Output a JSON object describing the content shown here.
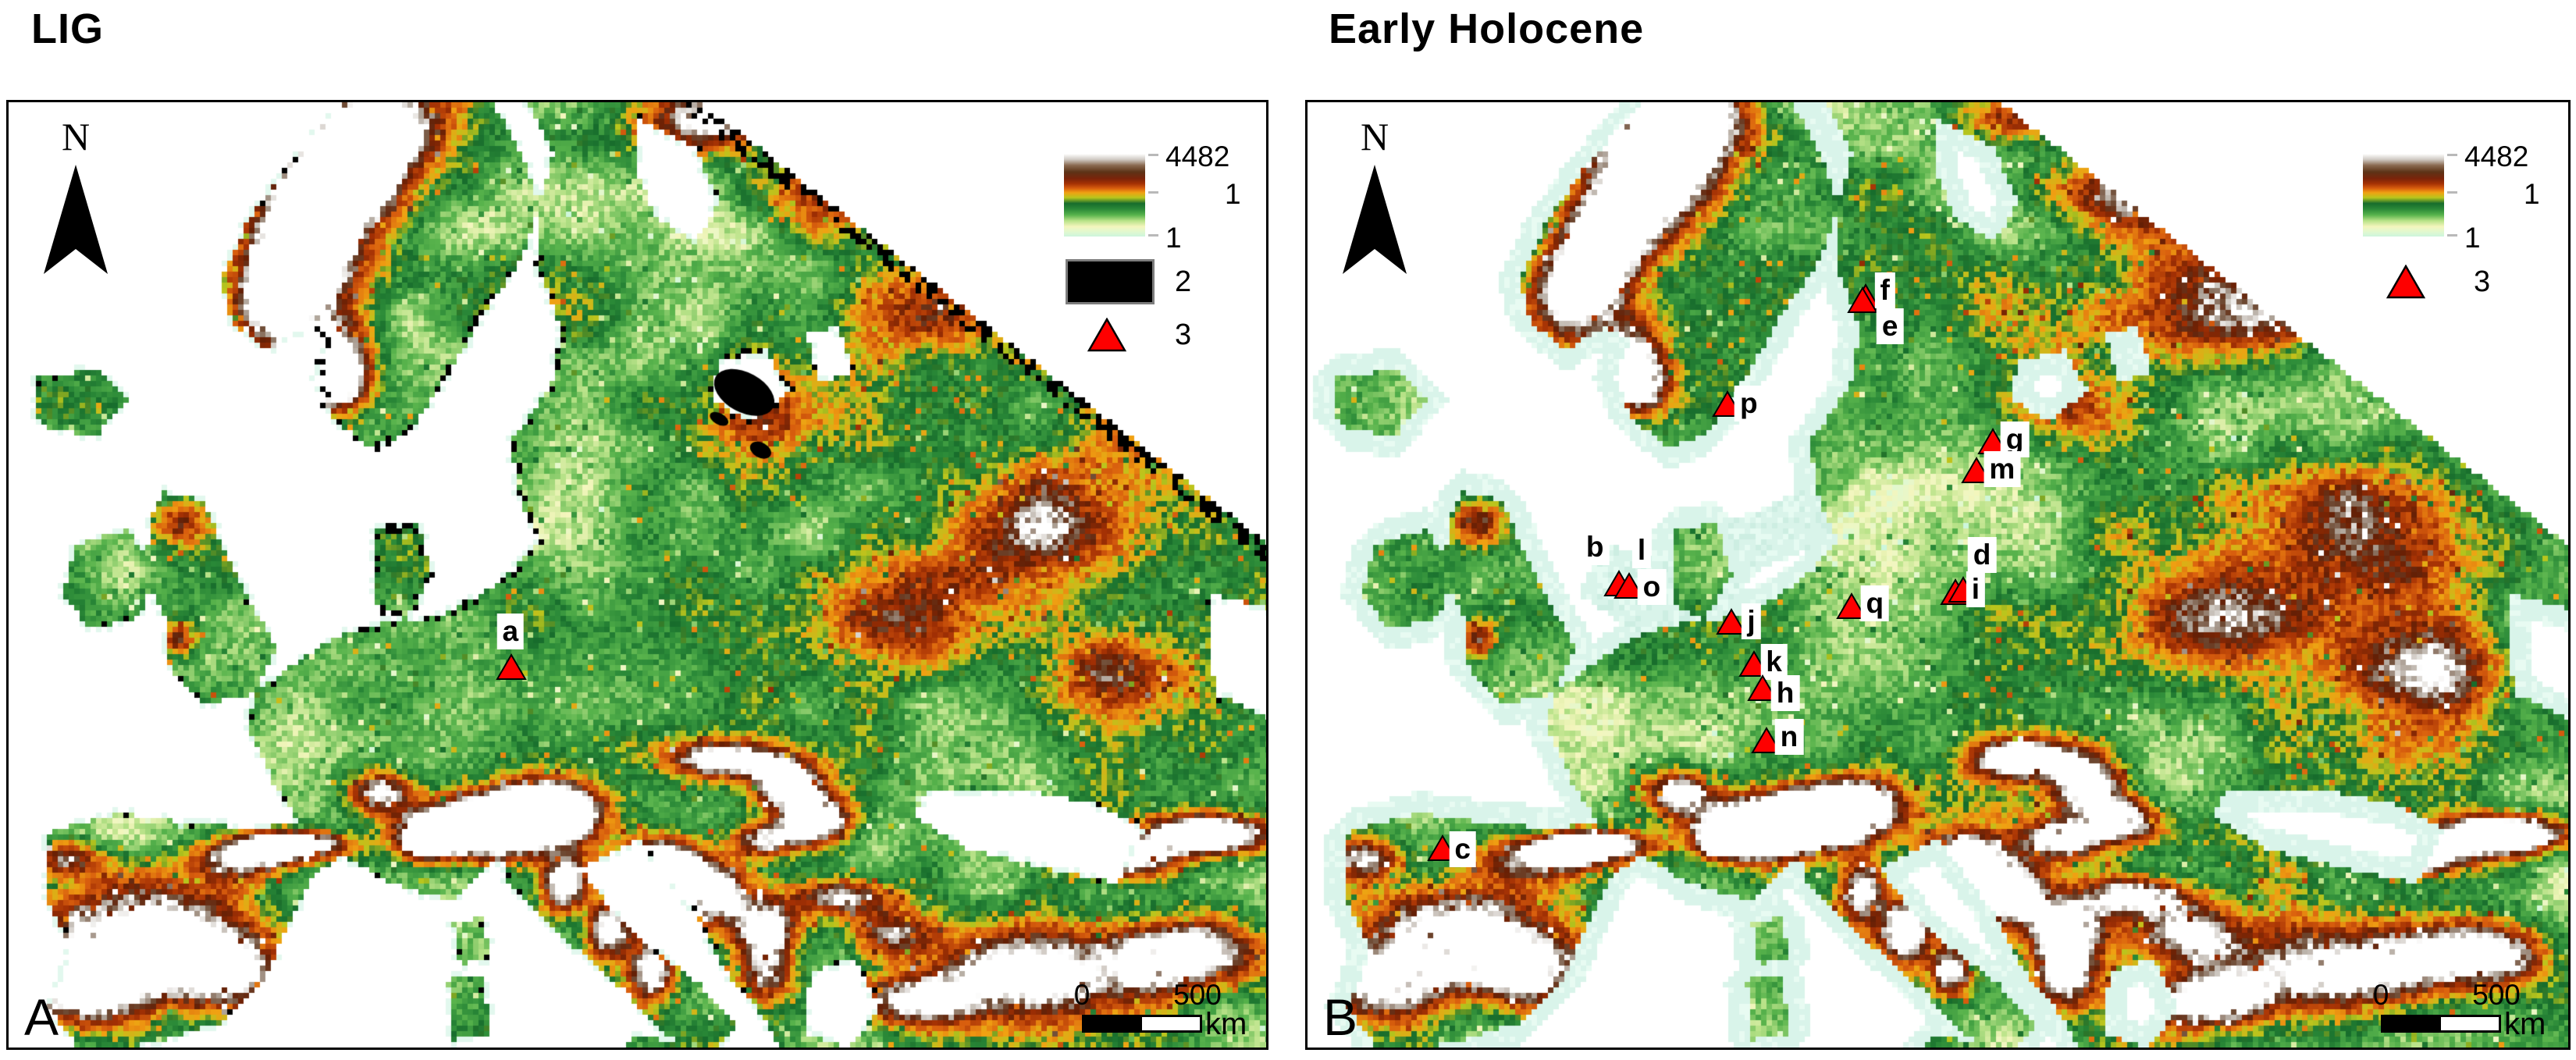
{
  "panels": [
    {
      "title": "LIG",
      "corner_label": "A",
      "north_label": "N",
      "legend": {
        "items": [
          {
            "type": "ramp",
            "max_label": "4482",
            "min_label": "1",
            "name_label": "1"
          },
          {
            "type": "box",
            "name_label": "2"
          },
          {
            "type": "triangle",
            "name_label": "3"
          }
        ]
      },
      "scalebar": {
        "zero": "0",
        "distance": "500",
        "unit": "km"
      },
      "markers": [
        {
          "letter": "a",
          "tri": [
            0.4,
            0.597
          ],
          "label": [
            0.399,
            0.56
          ]
        }
      ]
    },
    {
      "title": "Early Holocene",
      "corner_label": "B",
      "north_label": "N",
      "legend": {
        "items": [
          {
            "type": "ramp",
            "max_label": "4482",
            "min_label": "1",
            "name_label": "1"
          },
          {
            "type": "triangle",
            "name_label": "3"
          }
        ]
      },
      "scalebar": {
        "zero": "0",
        "distance": "500",
        "unit": "km"
      },
      "markers": [
        {
          "letter": "f",
          "tri": [
            0.443,
            0.2055
          ],
          "label": [
            0.458,
            0.199
          ]
        },
        {
          "letter": "e",
          "tri": [
            0.4405,
            0.209
          ],
          "label": [
            0.462,
            0.237
          ]
        },
        {
          "letter": "p",
          "tri": [
            0.3331,
            0.3188
          ],
          "label": [
            0.35,
            0.319
          ]
        },
        {
          "letter": "g",
          "tri": [
            0.5435,
            0.3582
          ],
          "label": [
            0.561,
            0.357
          ]
        },
        {
          "letter": "m",
          "tri": [
            0.5305,
            0.3886
          ],
          "label": [
            0.551,
            0.388
          ]
        },
        {
          "letter": "b",
          "tri": [
            0.2468,
            0.5088
          ],
          "label": [
            0.228,
            0.471
          ]
        },
        {
          "letter": "l",
          "tri": null,
          "label": [
            0.265,
            0.474
          ]
        },
        {
          "letter": "o",
          "tri": [
            0.2553,
            0.5111
          ],
          "label": [
            0.273,
            0.513
          ]
        },
        {
          "letter": "j",
          "tri": [
            0.3362,
            0.5489
          ],
          "label": [
            0.352,
            0.549
          ]
        },
        {
          "letter": "q",
          "tri": [
            0.4318,
            0.5324
          ],
          "label": [
            0.45,
            0.53
          ]
        },
        {
          "letter": "d",
          "tri": [
            0.5139,
            0.5177
          ],
          "label": [
            0.535,
            0.479
          ]
        },
        {
          "letter": "i",
          "tri": [
            0.52,
            0.515
          ],
          "label": [
            0.53,
            0.515
          ]
        },
        {
          "letter": "k",
          "tri": [
            0.3541,
            0.5941
          ],
          "label": [
            0.37,
            0.592
          ]
        },
        {
          "letter": "h",
          "tri": [
            0.3609,
            0.6195
          ],
          "label": [
            0.379,
            0.625
          ]
        },
        {
          "letter": "n",
          "tri": [
            0.364,
            0.6746
          ],
          "label": [
            0.382,
            0.671
          ]
        },
        {
          "letter": "c",
          "tri": [
            0.1073,
            0.7889
          ],
          "label": [
            0.123,
            0.79
          ]
        }
      ]
    }
  ],
  "colors": {
    "marker_red": "#fe0000",
    "class2_black": "#000000",
    "ramp_top_white": "#ffffff",
    "ramp_brown": "#5d3317",
    "ramp_orange": "#f0a112",
    "ramp_green": "#2b8a38",
    "ramp_min_mint": "#cdf6dc",
    "shelf_cyan": "#d9f4ea",
    "sea_white": "#ffffff"
  }
}
